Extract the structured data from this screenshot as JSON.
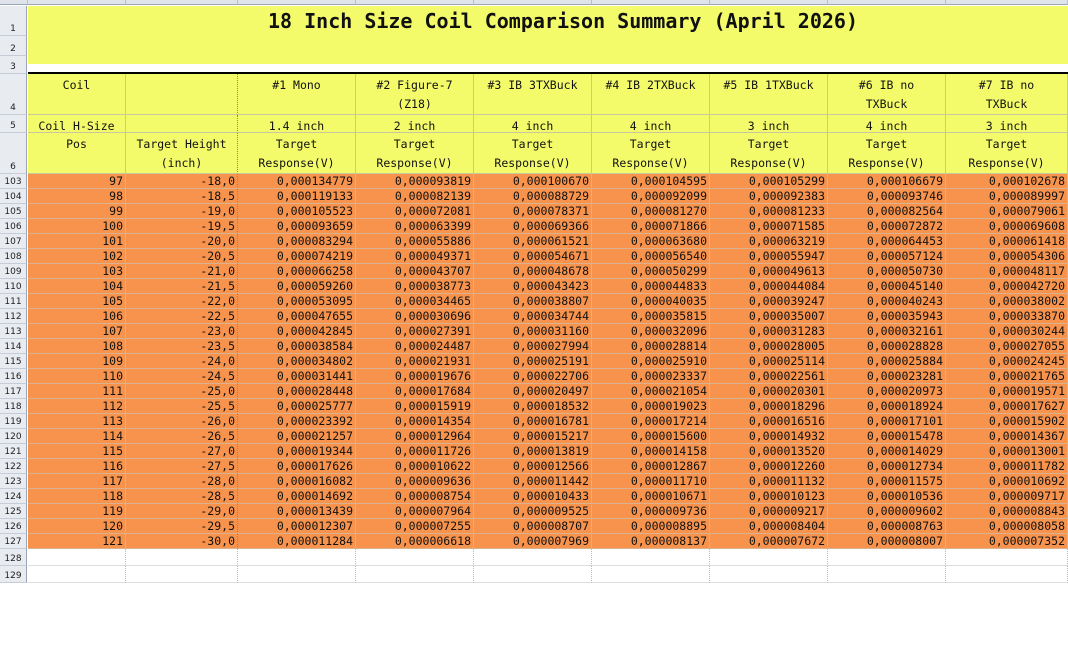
{
  "title": "18 Inch Size Coil Comparison Summary (April 2026)",
  "top_row_numbers": [
    "1",
    "2",
    "3",
    "4",
    "5",
    "6"
  ],
  "header": {
    "row4": [
      "Coil",
      "",
      "#1 Mono",
      "#2 Figure-7\n(Z18)",
      "#3 IB 3TXBuck",
      "#4 IB 2TXBuck",
      "#5 IB 1TXBuck",
      "#6 IB no\nTXBuck",
      "#7 IB no\nTXBuck"
    ],
    "row5": [
      "Coil H-Size",
      "",
      "1.4 inch",
      "2 inch",
      "4 inch",
      "4 inch",
      "3 inch",
      "4 inch",
      "3 inch"
    ],
    "row6": [
      "Pos",
      "Target Height\n(inch)",
      "Target\nResponse(V)",
      "Target\nResponse(V)",
      "Target\nResponse(V)",
      "Target\nResponse(V)",
      "Target\nResponse(V)",
      "Target\nResponse(V)",
      "Target\nResponse(V)"
    ]
  },
  "rows": [
    {
      "r": "103",
      "v": [
        "97",
        "-18,0",
        "0,000134779",
        "0,000093819",
        "0,000100670",
        "0,000104595",
        "0,000105299",
        "0,000106679",
        "0,000102678"
      ]
    },
    {
      "r": "104",
      "v": [
        "98",
        "-18,5",
        "0,000119133",
        "0,000082139",
        "0,000088729",
        "0,000092099",
        "0,000092383",
        "0,000093746",
        "0,000089997"
      ]
    },
    {
      "r": "105",
      "v": [
        "99",
        "-19,0",
        "0,000105523",
        "0,000072081",
        "0,000078371",
        "0,000081270",
        "0,000081233",
        "0,000082564",
        "0,000079061"
      ]
    },
    {
      "r": "106",
      "v": [
        "100",
        "-19,5",
        "0,000093659",
        "0,000063399",
        "0,000069366",
        "0,000071866",
        "0,000071585",
        "0,000072872",
        "0,000069608"
      ]
    },
    {
      "r": "107",
      "v": [
        "101",
        "-20,0",
        "0,000083294",
        "0,000055886",
        "0,000061521",
        "0,000063680",
        "0,000063219",
        "0,000064453",
        "0,000061418"
      ]
    },
    {
      "r": "108",
      "v": [
        "102",
        "-20,5",
        "0,000074219",
        "0,000049371",
        "0,000054671",
        "0,000056540",
        "0,000055947",
        "0,000057124",
        "0,000054306"
      ]
    },
    {
      "r": "109",
      "v": [
        "103",
        "-21,0",
        "0,000066258",
        "0,000043707",
        "0,000048678",
        "0,000050299",
        "0,000049613",
        "0,000050730",
        "0,000048117"
      ]
    },
    {
      "r": "110",
      "v": [
        "104",
        "-21,5",
        "0,000059260",
        "0,000038773",
        "0,000043423",
        "0,000044833",
        "0,000044084",
        "0,000045140",
        "0,000042720"
      ]
    },
    {
      "r": "111",
      "v": [
        "105",
        "-22,0",
        "0,000053095",
        "0,000034465",
        "0,000038807",
        "0,000040035",
        "0,000039247",
        "0,000040243",
        "0,000038002"
      ]
    },
    {
      "r": "112",
      "v": [
        "106",
        "-22,5",
        "0,000047655",
        "0,000030696",
        "0,000034744",
        "0,000035815",
        "0,000035007",
        "0,000035943",
        "0,000033870"
      ]
    },
    {
      "r": "113",
      "v": [
        "107",
        "-23,0",
        "0,000042845",
        "0,000027391",
        "0,000031160",
        "0,000032096",
        "0,000031283",
        "0,000032161",
        "0,000030244"
      ]
    },
    {
      "r": "114",
      "v": [
        "108",
        "-23,5",
        "0,000038584",
        "0,000024487",
        "0,000027994",
        "0,000028814",
        "0,000028005",
        "0,000028828",
        "0,000027055"
      ]
    },
    {
      "r": "115",
      "v": [
        "109",
        "-24,0",
        "0,000034802",
        "0,000021931",
        "0,000025191",
        "0,000025910",
        "0,000025114",
        "0,000025884",
        "0,000024245"
      ]
    },
    {
      "r": "116",
      "v": [
        "110",
        "-24,5",
        "0,000031441",
        "0,000019676",
        "0,000022706",
        "0,000023337",
        "0,000022561",
        "0,000023281",
        "0,000021765"
      ]
    },
    {
      "r": "117",
      "v": [
        "111",
        "-25,0",
        "0,000028448",
        "0,000017684",
        "0,000020497",
        "0,000021054",
        "0,000020301",
        "0,000020973",
        "0,000019571"
      ]
    },
    {
      "r": "118",
      "v": [
        "112",
        "-25,5",
        "0,000025777",
        "0,000015919",
        "0,000018532",
        "0,000019023",
        "0,000018296",
        "0,000018924",
        "0,000017627"
      ]
    },
    {
      "r": "119",
      "v": [
        "113",
        "-26,0",
        "0,000023392",
        "0,000014354",
        "0,000016781",
        "0,000017214",
        "0,000016516",
        "0,000017101",
        "0,000015902"
      ]
    },
    {
      "r": "120",
      "v": [
        "114",
        "-26,5",
        "0,000021257",
        "0,000012964",
        "0,000015217",
        "0,000015600",
        "0,000014932",
        "0,000015478",
        "0,000014367"
      ]
    },
    {
      "r": "121",
      "v": [
        "115",
        "-27,0",
        "0,000019344",
        "0,000011726",
        "0,000013819",
        "0,000014158",
        "0,000013520",
        "0,000014029",
        "0,000013001"
      ]
    },
    {
      "r": "122",
      "v": [
        "116",
        "-27,5",
        "0,000017626",
        "0,000010622",
        "0,000012566",
        "0,000012867",
        "0,000012260",
        "0,000012734",
        "0,000011782"
      ]
    },
    {
      "r": "123",
      "v": [
        "117",
        "-28,0",
        "0,000016082",
        "0,000009636",
        "0,000011442",
        "0,000011710",
        "0,000011132",
        "0,000011575",
        "0,000010692"
      ]
    },
    {
      "r": "124",
      "v": [
        "118",
        "-28,5",
        "0,000014692",
        "0,000008754",
        "0,000010433",
        "0,000010671",
        "0,000010123",
        "0,000010536",
        "0,000009717"
      ]
    },
    {
      "r": "125",
      "v": [
        "119",
        "-29,0",
        "0,000013439",
        "0,000007964",
        "0,000009525",
        "0,000009736",
        "0,000009217",
        "0,000009602",
        "0,000008843"
      ]
    },
    {
      "r": "126",
      "v": [
        "120",
        "-29,5",
        "0,000012307",
        "0,000007255",
        "0,000008707",
        "0,000008895",
        "0,000008404",
        "0,000008763",
        "0,000008058"
      ]
    },
    {
      "r": "127",
      "v": [
        "121",
        "-30,0",
        "0,000011284",
        "0,000006618",
        "0,000007969",
        "0,000008137",
        "0,000007672",
        "0,000008007",
        "0,000007352"
      ]
    }
  ],
  "trailing_rows": [
    "128",
    "129"
  ],
  "colors": {
    "header_yellow": "#f3fb6b",
    "data_orange": "#f7934c"
  }
}
